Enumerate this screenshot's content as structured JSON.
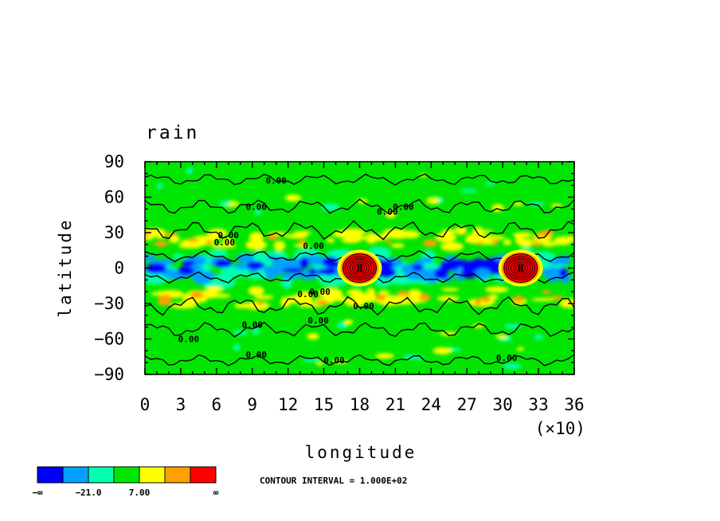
{
  "chart_data": {
    "type": "heatmap",
    "title": "rain",
    "xlabel": "longitude",
    "ylabel": "latitude",
    "x_multiplier": "(×10)",
    "xlim": [
      0,
      36
    ],
    "ylim": [
      -90,
      90
    ],
    "x_ticks": [
      "0",
      "3",
      "6",
      "9",
      "12",
      "15",
      "18",
      "21",
      "24",
      "27",
      "30",
      "33",
      "36"
    ],
    "y_ticks": [
      "90",
      "60",
      "30",
      "0",
      "−30",
      "−60",
      "−90"
    ],
    "contour_interval_text": "CONTOUR INTERVAL = 1.000E+02",
    "contour_label": "0.00",
    "colorbar": {
      "colors": [
        "#0000ff",
        "#00a0ff",
        "#00ffb0",
        "#00e600",
        "#ffff00",
        "#ffa000",
        "#ff0000"
      ],
      "labels": [
        "−∞",
        "−21.0",
        "7.00",
        "∞"
      ]
    },
    "features": {
      "maxima_centers_lon_x10": [
        18,
        31.5
      ],
      "maxima_lat": 0,
      "maximum_marker": "H"
    }
  }
}
